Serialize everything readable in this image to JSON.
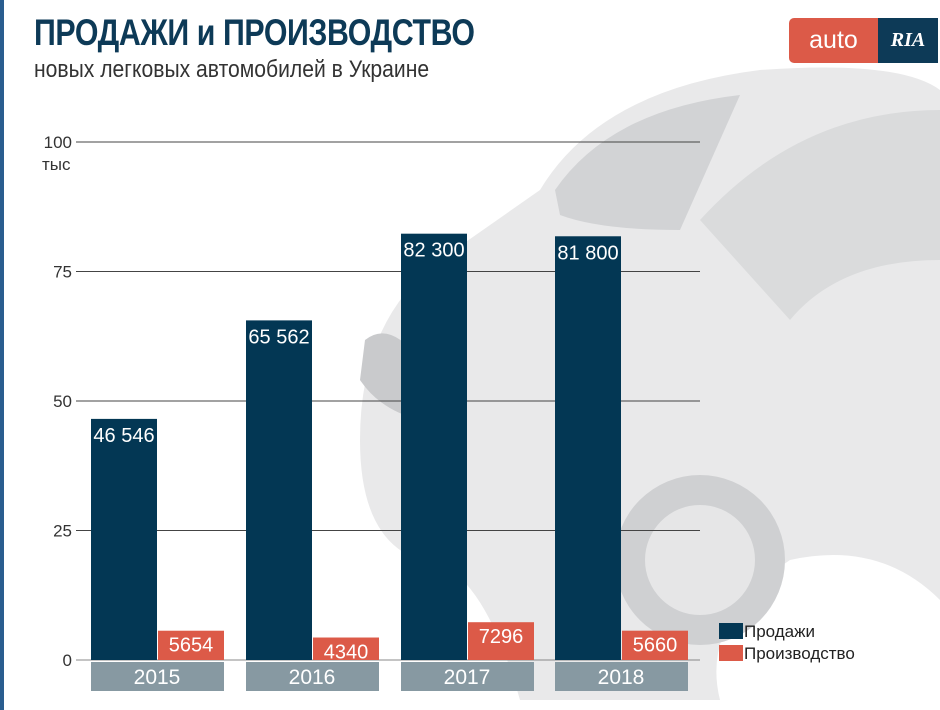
{
  "header": {
    "title": "ПРОДАЖИ и ПРОИЗВОДСТВО",
    "subtitle": "новых легковых автомобилей в Украине"
  },
  "logo": {
    "text_left": "auto",
    "text_right": "RIA"
  },
  "colors": {
    "sales": "#033754",
    "production": "#dc5a48",
    "year_box": "#8799a2"
  },
  "chart_data": {
    "type": "bar",
    "title": "ПРОДАЖИ и ПРОИЗВОДСТВО",
    "ylabel": "тыс",
    "categories": [
      "2015",
      "2016",
      "2017",
      "2018"
    ],
    "ylim": [
      0,
      100
    ],
    "yticks": [
      0,
      25,
      50,
      75,
      100
    ],
    "unit_scale": 1000,
    "series": [
      {
        "name": "Продажи",
        "values": [
          46546,
          65562,
          82300,
          81800
        ],
        "labels": [
          "46 546",
          "65 562",
          "82 300",
          "81 800"
        ]
      },
      {
        "name": "Производство",
        "values": [
          5654,
          4340,
          7296,
          5660
        ],
        "labels": [
          "5654",
          "4340",
          "7296",
          "5660"
        ]
      }
    ],
    "legend": "bottom-right",
    "grid": true
  }
}
